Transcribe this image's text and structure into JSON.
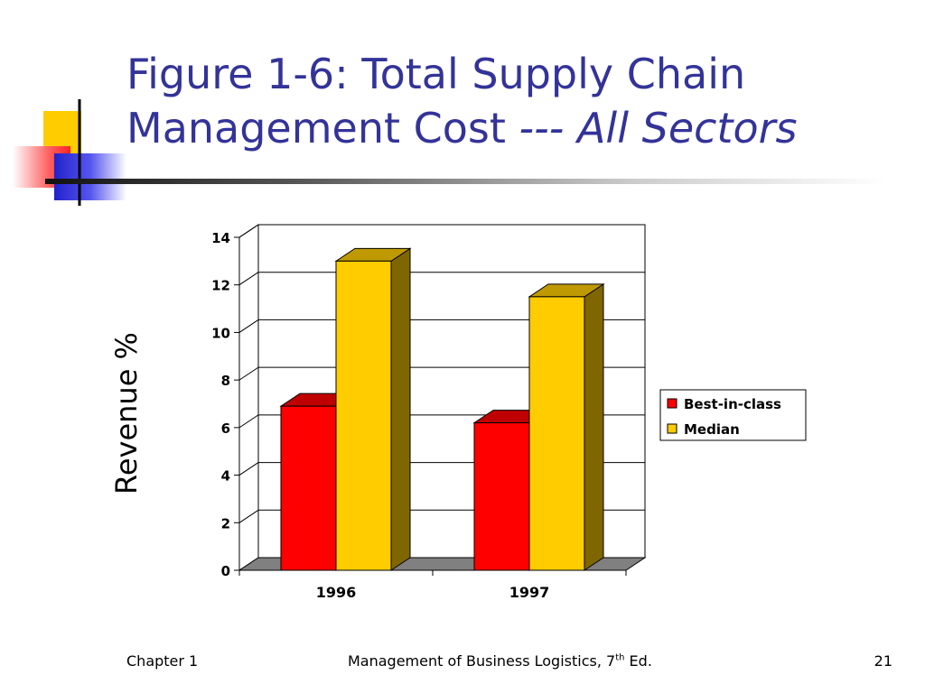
{
  "slide": {
    "title_main": "Figure 1-6: Total Supply Chain Management Cost",
    "title_italic": "--- All Sectors",
    "footer_left": "Chapter 1",
    "footer_center_prefix": "Management of Business Logistics, 7",
    "footer_center_sup": "th",
    "footer_center_suffix": " Ed.",
    "footer_right": "21"
  },
  "colors": {
    "title": "#333399",
    "best_in_class": "#ff0000",
    "median": "#ffcc00"
  },
  "chart_data": {
    "type": "bar",
    "title": "",
    "xlabel": "",
    "ylabel": "Revenue %",
    "categories": [
      "1996",
      "1997"
    ],
    "series": [
      {
        "name": "Best-in-class",
        "values": [
          6.9,
          6.2
        ],
        "color": "#ff0000"
      },
      {
        "name": "Median",
        "values": [
          13.0,
          11.5
        ],
        "color": "#ffcc00"
      }
    ],
    "ylim": [
      0,
      14
    ],
    "yticks": [
      0,
      2,
      4,
      6,
      8,
      10,
      12,
      14
    ],
    "grid": true,
    "legend_position": "right",
    "style": "3d-column"
  }
}
